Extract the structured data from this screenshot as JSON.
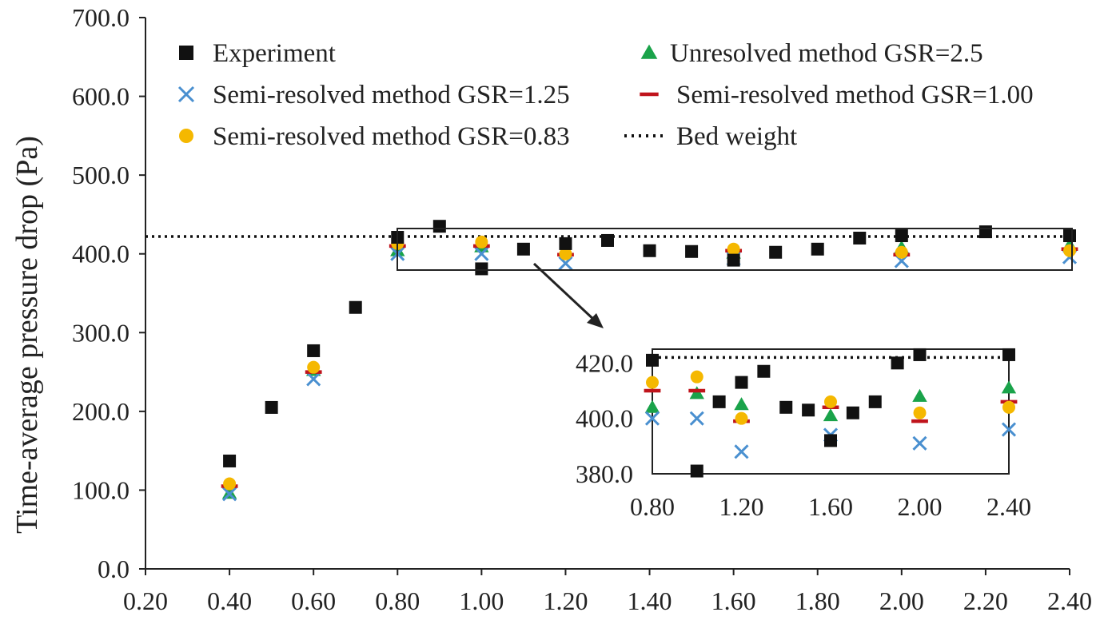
{
  "chart_data": {
    "type": "scatter",
    "ylabel": "Time-average pressure drop (Pa)",
    "xlim": [
      0.2,
      2.4
    ],
    "ylim": [
      0,
      700
    ],
    "x_ticks": [
      "0.20",
      "0.40",
      "0.60",
      "0.80",
      "1.00",
      "1.20",
      "1.40",
      "1.60",
      "1.80",
      "2.00",
      "2.20",
      "2.40"
    ],
    "y_ticks": [
      "0.0",
      "100.0",
      "200.0",
      "300.0",
      "400.0",
      "500.0",
      "600.0",
      "700.0"
    ],
    "grid": false,
    "legend_position": "top",
    "bed_weight": 422,
    "series": [
      {
        "name": "Experiment",
        "marker": "square",
        "color": "#111111",
        "x": [
          0.4,
          0.5,
          0.6,
          0.7,
          0.8,
          0.9,
          1.0,
          1.1,
          1.2,
          1.3,
          1.4,
          1.5,
          1.6,
          1.7,
          1.8,
          1.9,
          2.0,
          2.2,
          2.4
        ],
        "y": [
          137,
          205,
          277,
          332,
          421,
          435,
          381,
          406,
          413,
          417,
          404,
          403,
          392,
          402,
          406,
          420,
          423,
          428,
          423
        ]
      },
      {
        "name": "Unresolved method GSR=2.5",
        "marker": "triangle",
        "color": "#1aa34a",
        "x": [
          0.4,
          0.6,
          0.8,
          1.0,
          1.2,
          1.6,
          2.0,
          2.4
        ],
        "y": [
          96,
          252,
          404,
          409,
          405,
          401,
          408,
          411
        ]
      },
      {
        "name": "Semi-resolved method GSR=1.25",
        "marker": "x",
        "color": "#4a90d0",
        "x": [
          0.4,
          0.6,
          0.8,
          1.0,
          1.2,
          1.6,
          2.0,
          2.4
        ],
        "y": [
          95,
          241,
          400,
          400,
          388,
          394,
          391,
          396
        ]
      },
      {
        "name": "Semi-resolved method GSR=1.00",
        "marker": "dash",
        "color": "#c0141c",
        "x": [
          0.4,
          0.6,
          0.8,
          1.0,
          1.2,
          1.6,
          2.0,
          2.4
        ],
        "y": [
          105,
          250,
          410,
          410,
          399,
          404,
          399,
          406
        ]
      },
      {
        "name": "Semi-resolved method GSR=0.83",
        "marker": "circle",
        "color": "#f5b800",
        "x": [
          0.4,
          0.6,
          0.8,
          1.0,
          1.2,
          1.6,
          2.0,
          2.4
        ],
        "y": [
          108,
          256,
          413,
          415,
          400,
          406,
          402,
          404
        ]
      },
      {
        "name": "Bed weight",
        "marker": "dotted-line",
        "color": "#111111",
        "x": [
          0.2,
          2.4
        ],
        "y": [
          422,
          422
        ]
      }
    ],
    "inset": {
      "xlim": [
        0.8,
        2.4
      ],
      "ylim": [
        380,
        425
      ],
      "x_ticks": [
        "0.80",
        "1.20",
        "1.60",
        "2.00",
        "2.40"
      ],
      "y_ticks": [
        "380.0",
        "400.0",
        "420.0"
      ]
    }
  }
}
